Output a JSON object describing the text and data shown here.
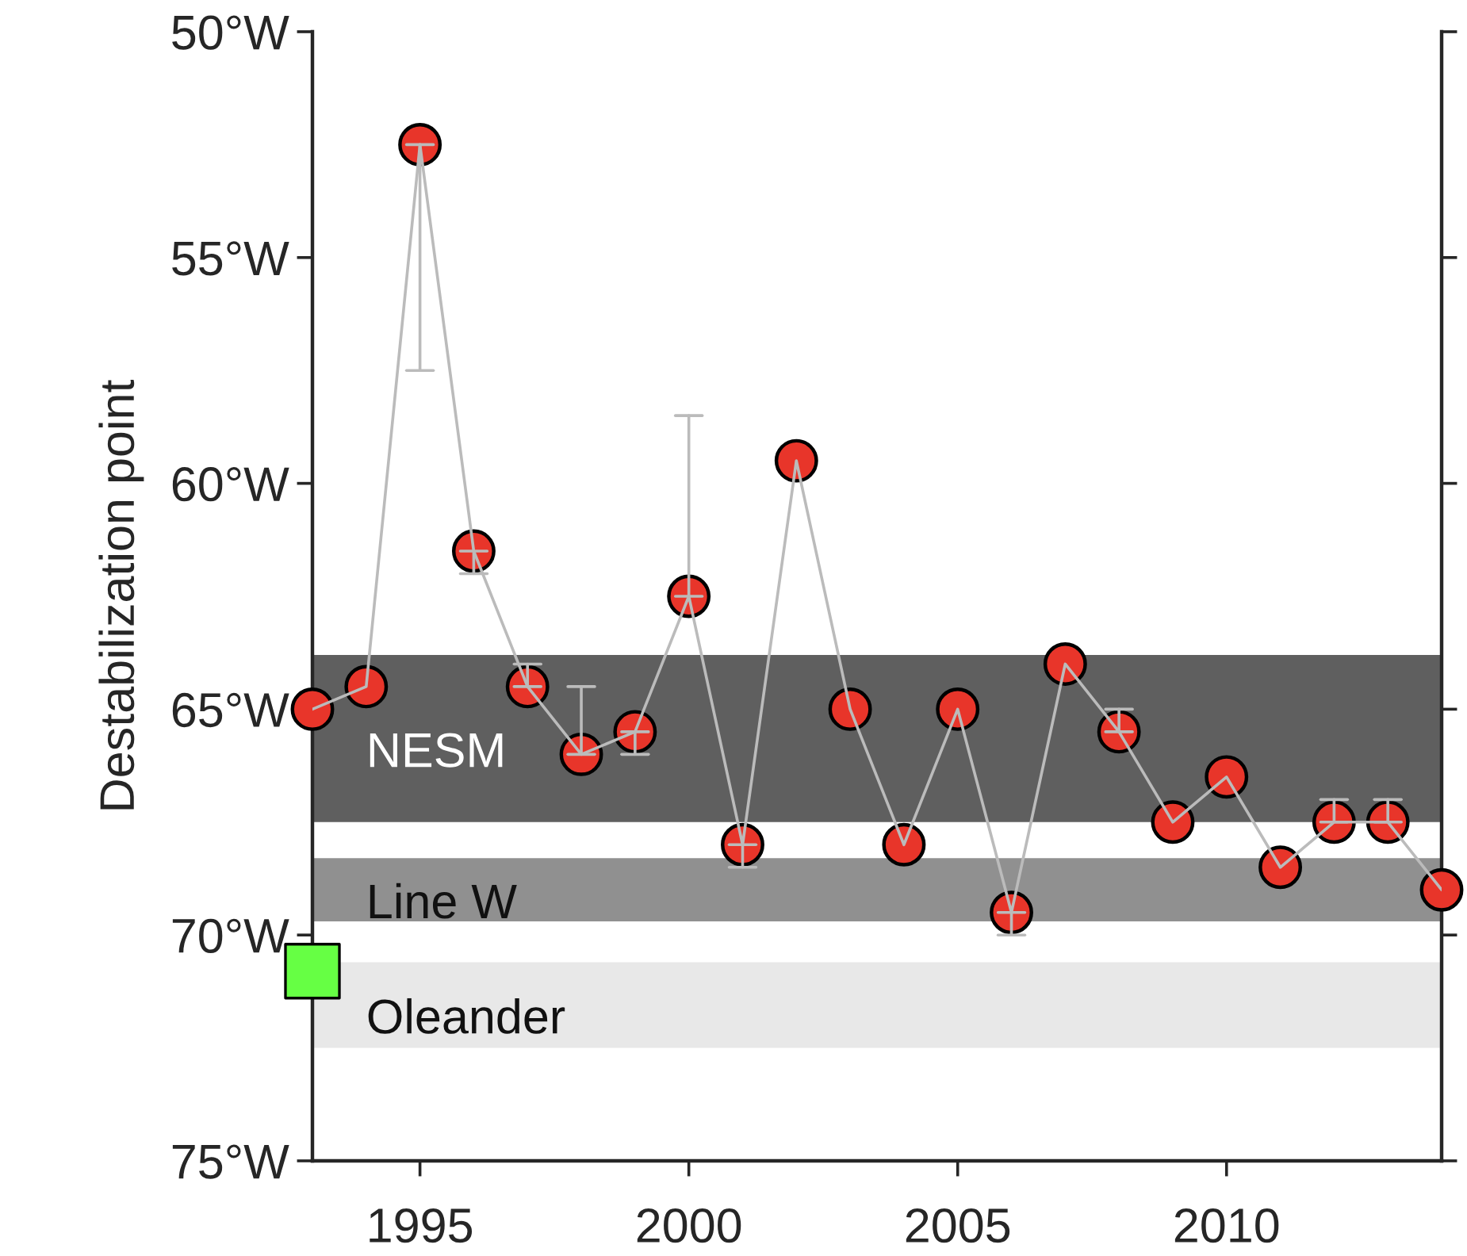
{
  "chart_data": {
    "type": "line",
    "ylabel": "Destabilization point",
    "x": [
      1993,
      1994,
      1995,
      1996,
      1997,
      1998,
      1999,
      2000,
      2001,
      2002,
      2003,
      2004,
      2005,
      2006,
      2007,
      2008,
      2009,
      2010,
      2011,
      2012,
      2013,
      2014
    ],
    "series": [
      {
        "color": "#e8352a",
        "marker": "circle",
        "values": [
          65,
          64.5,
          52.5,
          61.5,
          64.5,
          66,
          65.5,
          62.5,
          68,
          59.5,
          65,
          68,
          65,
          69.5,
          64,
          65.5,
          67.5,
          66.5,
          68.5,
          67.5,
          67.5,
          69
        ],
        "errors": [
          null,
          null,
          [
            52.5,
            57.5
          ],
          [
            61.5,
            62
          ],
          [
            64,
            64.5
          ],
          [
            64.5,
            66
          ],
          [
            65.5,
            66
          ],
          [
            58.5,
            62.5
          ],
          [
            68,
            68.5
          ],
          null,
          null,
          null,
          null,
          [
            69.5,
            70
          ],
          null,
          [
            65,
            65.5
          ],
          null,
          null,
          null,
          [
            67,
            67.5
          ],
          [
            67,
            67.5
          ],
          null
        ]
      },
      {
        "type": "scatter",
        "color": "#66ff44",
        "marker": "square",
        "x": [
          1993
        ],
        "values": [
          70.8
        ]
      }
    ],
    "xlim": [
      1993,
      2014
    ],
    "xticks": [
      1995,
      2000,
      2005,
      2010
    ],
    "ylim": [
      75,
      50
    ],
    "yticks": [
      {
        "value": 50,
        "label": "50°W"
      },
      {
        "value": 55,
        "label": "55°W"
      },
      {
        "value": 60,
        "label": "60°W"
      },
      {
        "value": 65,
        "label": "65°W"
      },
      {
        "value": 70,
        "label": "70°W"
      },
      {
        "value": 75,
        "label": "75°W"
      }
    ],
    "bands": [
      {
        "axis": "y",
        "from": 63.8,
        "to": 67.5,
        "label": "NESM",
        "color": "#5f5f5f"
      },
      {
        "axis": "y",
        "from": 68.3,
        "to": 69.7,
        "label": "Line W",
        "color": "#909090"
      },
      {
        "axis": "y",
        "from": 70.6,
        "to": 72.5,
        "label": "Oleander",
        "color": "#e8e8e8"
      }
    ],
    "grid": false
  }
}
